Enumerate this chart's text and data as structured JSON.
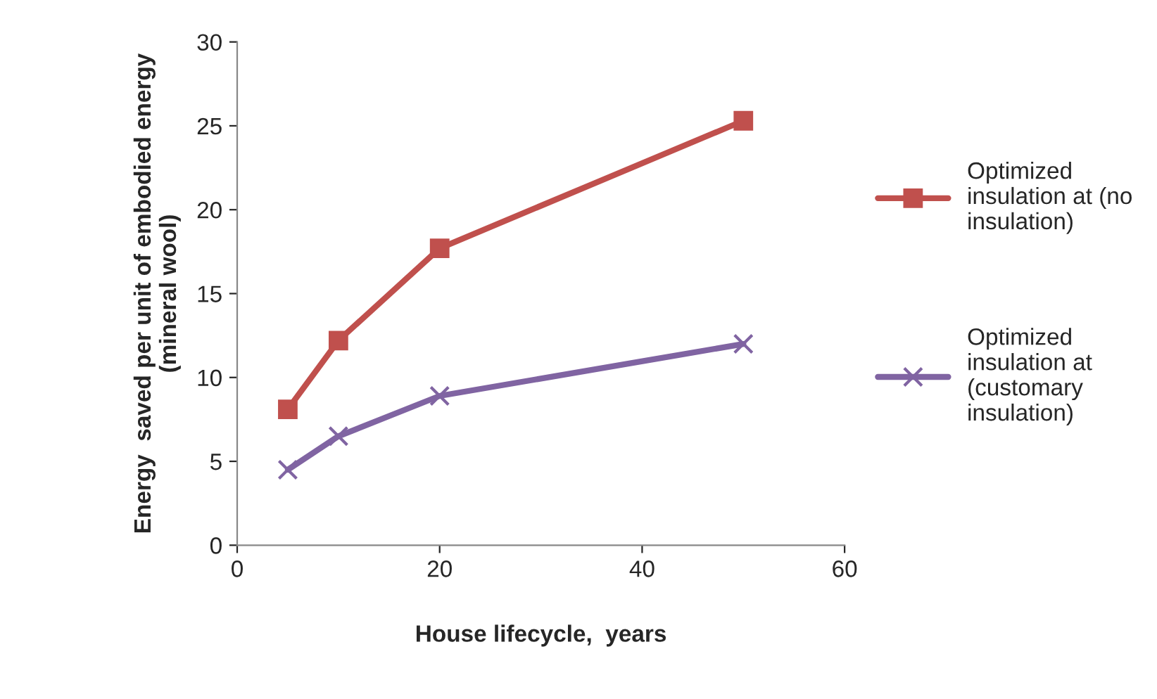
{
  "chart_data": {
    "type": "line",
    "xlabel": "House lifecycle,  years",
    "ylabel": "Energy  saved per unit of embodied energy\n(mineral wool)",
    "x": [
      5,
      10,
      20,
      50
    ],
    "series": [
      {
        "name": "Optimized\ninsulation at (no\ninsulation)",
        "color": "#c0504d",
        "values": [
          8.1,
          12.2,
          17.7,
          25.3
        ],
        "marker": "square"
      },
      {
        "name": "Optimized\ninsulation at\n(customary\ninsulation)",
        "color": "#8064a2",
        "values": [
          4.5,
          6.5,
          8.9,
          12.0
        ],
        "marker": "cross"
      }
    ],
    "xlim": [
      0,
      60
    ],
    "xticks": [
      0,
      20,
      40,
      60
    ],
    "ylim": [
      0,
      30
    ],
    "yticks": [
      0,
      5,
      10,
      15,
      20,
      25,
      30
    ],
    "grid": false,
    "legend": "right",
    "line_style": "solid"
  }
}
